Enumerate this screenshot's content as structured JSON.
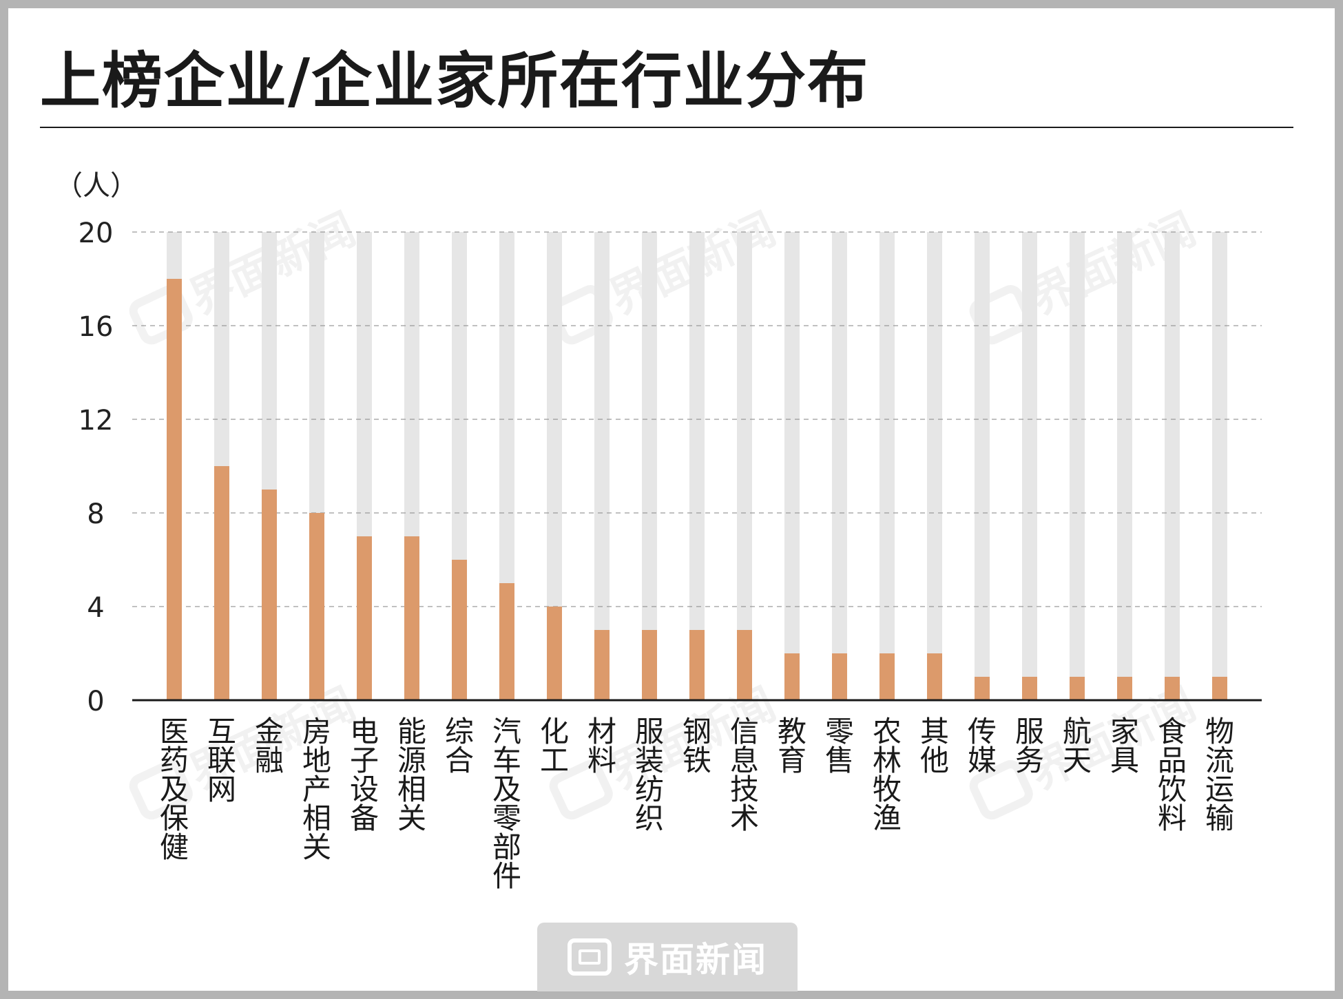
{
  "title": "上榜企业/企业家所在行业分布",
  "watermark": "界面新闻",
  "brand": {
    "name": "界面新闻"
  },
  "colors": {
    "bar": "#dc9a6b",
    "track": "#e6e6e6",
    "grid": "#9a9a9a",
    "axis": "#1a1a1a"
  },
  "chart_data": {
    "type": "bar",
    "title": "上榜企业/企业家所在行业分布",
    "ylabel": "（人）",
    "xlabel": "",
    "ylim": [
      0,
      20
    ],
    "yticks": [
      0,
      4,
      8,
      12,
      16,
      20
    ],
    "grid": true,
    "categories": [
      "医药及保健",
      "互联网",
      "金融",
      "房地产相关",
      "电子设备",
      "能源相关",
      "综合",
      "汽车及零部件",
      "化工",
      "材料",
      "服装纺织",
      "钢铁",
      "信息技术",
      "教育",
      "零售",
      "农林牧渔",
      "其他",
      "传媒",
      "服务",
      "航天",
      "家具",
      "食品饮料",
      "物流运输"
    ],
    "values": [
      18,
      10,
      9,
      8,
      7,
      7,
      6,
      5,
      4,
      3,
      3,
      3,
      3,
      2,
      2,
      2,
      2,
      1,
      1,
      1,
      1,
      1,
      1
    ]
  }
}
